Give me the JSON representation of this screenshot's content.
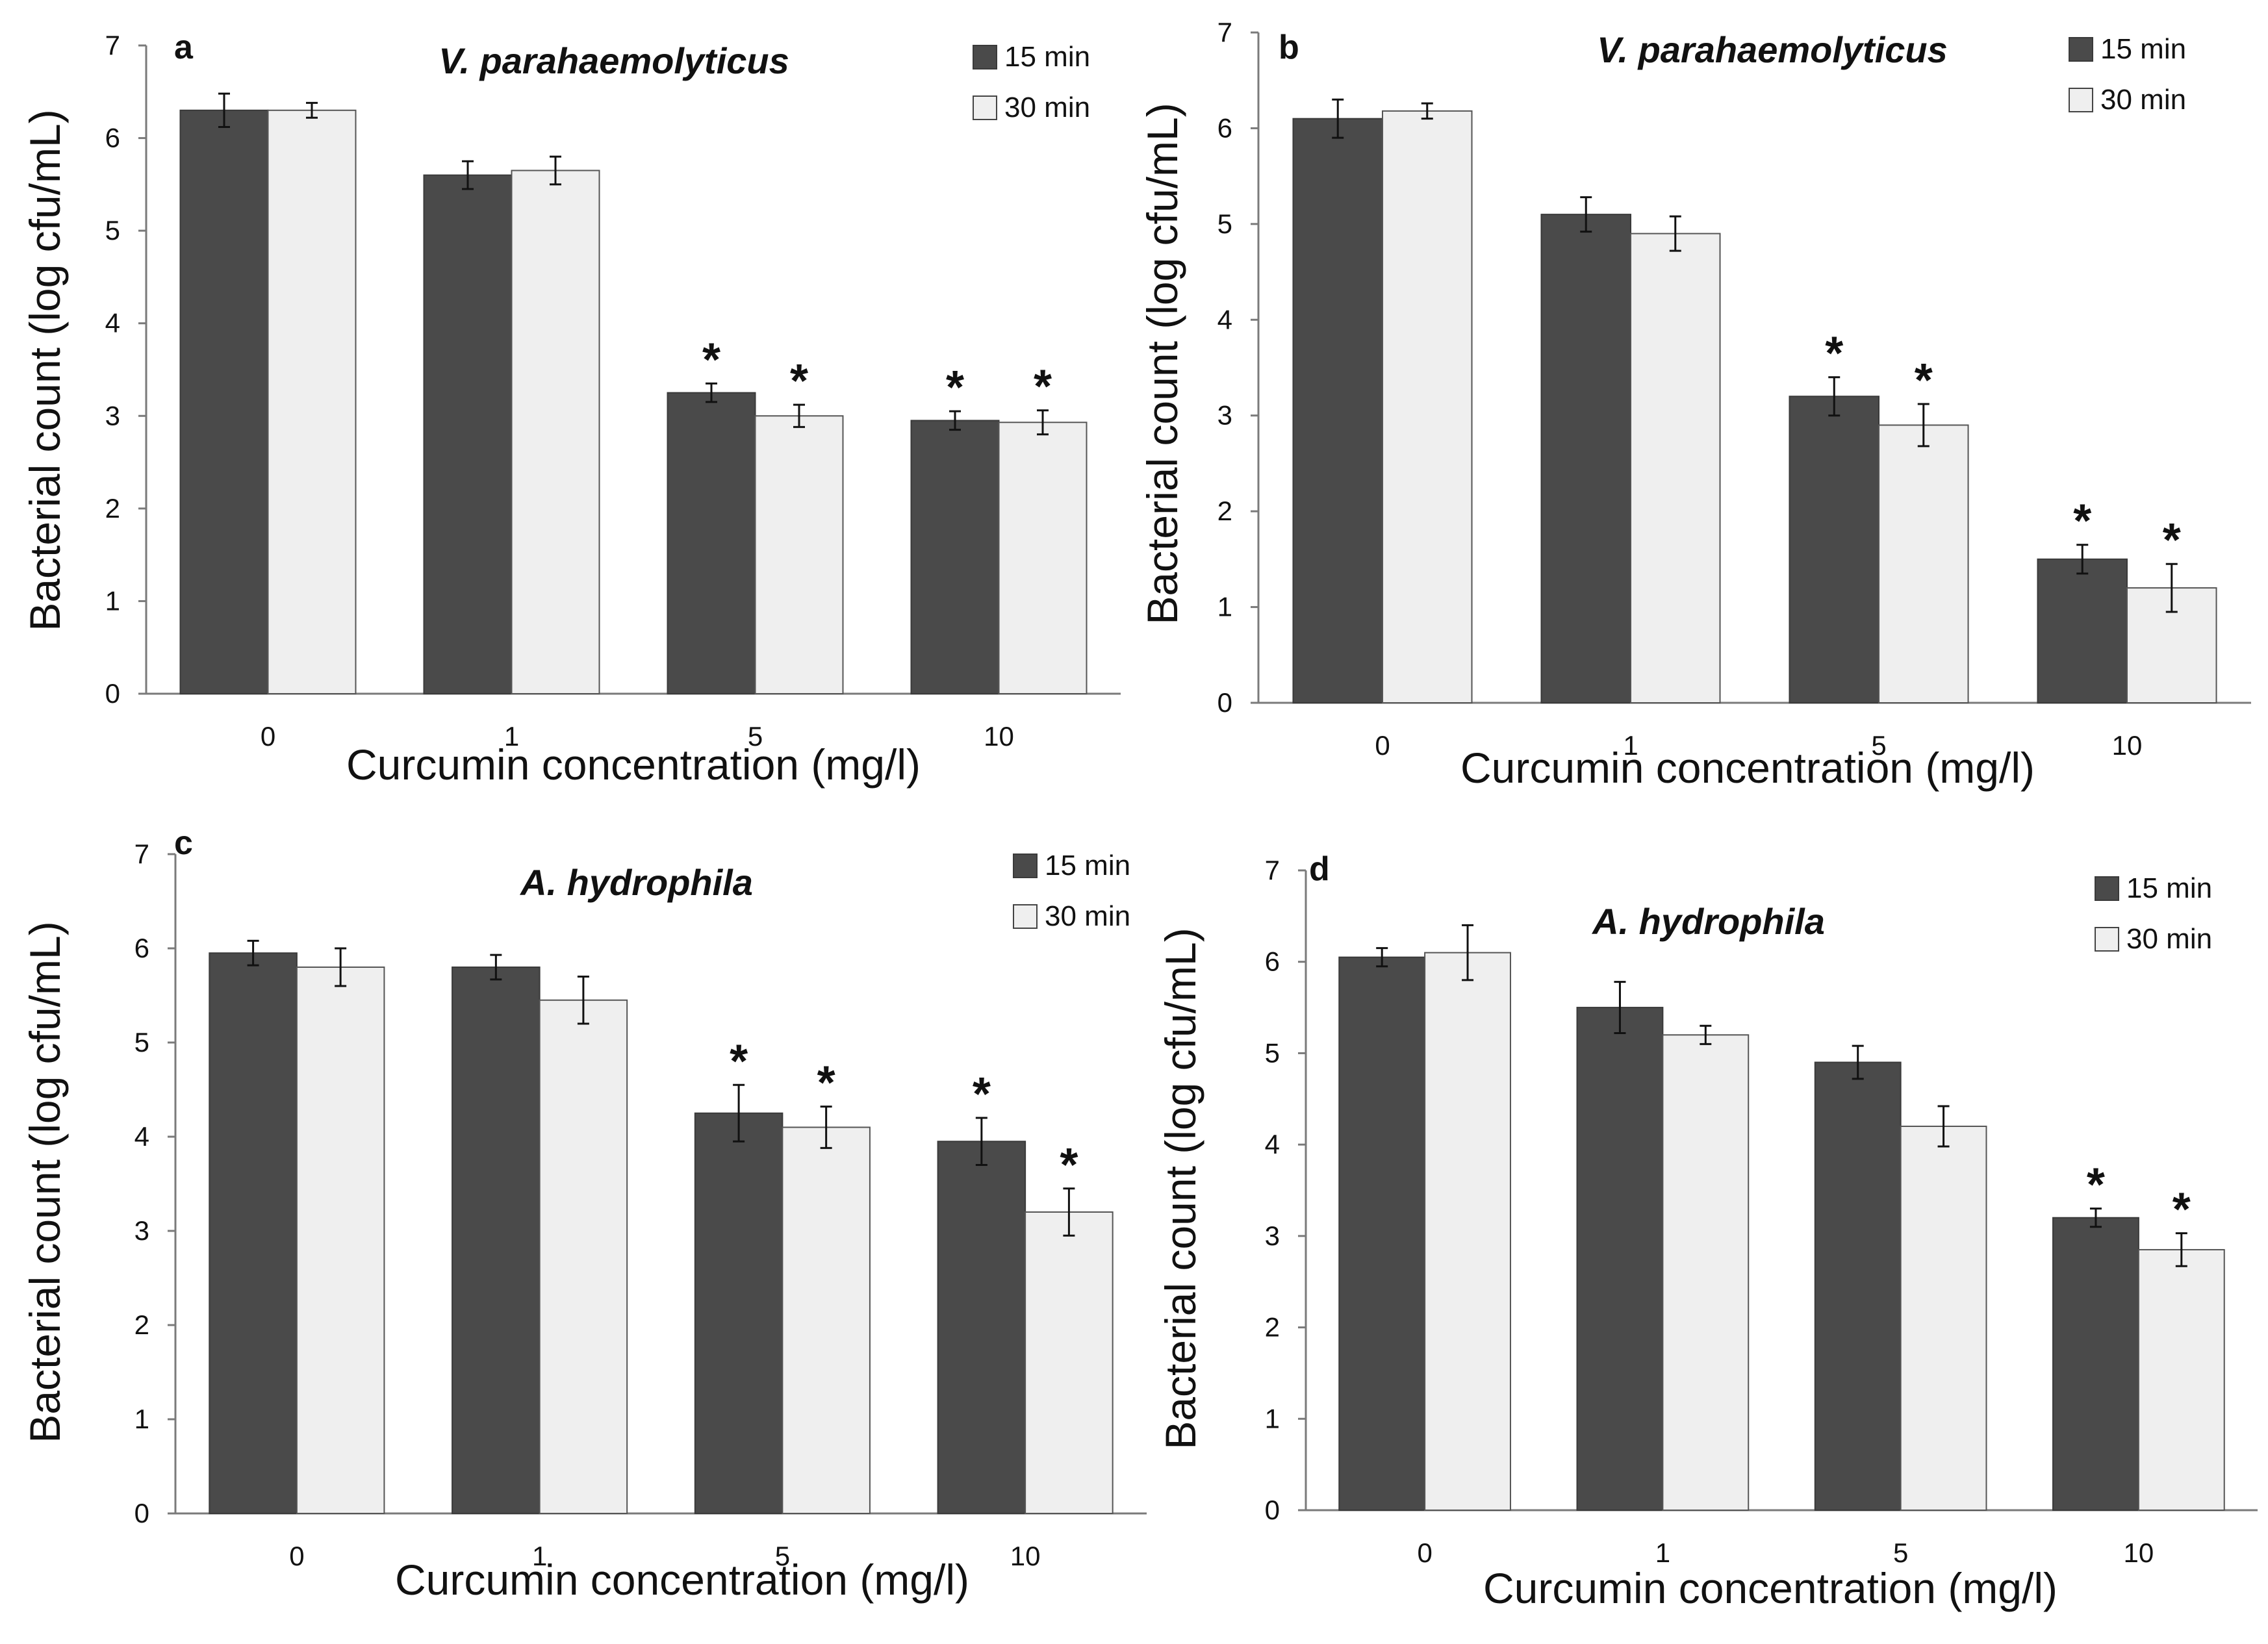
{
  "colors": {
    "bar_15": "#4a4a4a",
    "bar_30": "#efefef",
    "axis": "#7a7a7a",
    "text": "#111111"
  },
  "chart_data": [
    {
      "panel": "a",
      "type": "bar",
      "title": "V. parahaemolyticus",
      "xlabel": "Curcumin concentration (mg/l)",
      "ylabel": "Bacterial count (log cfu/mL)",
      "ylim": [
        0,
        7
      ],
      "yticks": [
        "0",
        "1",
        "2",
        "3",
        "4",
        "5",
        "6",
        "7"
      ],
      "categories": [
        "0",
        "1",
        "5",
        "10"
      ],
      "legend_position": "top-right",
      "grid": false,
      "series": [
        {
          "name": "15  min",
          "values": [
            6.3,
            5.6,
            3.25,
            2.95
          ],
          "errors": [
            0.18,
            0.15,
            0.1,
            0.1
          ],
          "significant": [
            false,
            false,
            true,
            true
          ]
        },
        {
          "name": "30 min",
          "values": [
            6.3,
            5.65,
            3.0,
            2.93
          ],
          "errors": [
            0.08,
            0.15,
            0.12,
            0.13
          ],
          "significant": [
            false,
            false,
            true,
            true
          ]
        }
      ]
    },
    {
      "panel": "b",
      "type": "bar",
      "title": "V. parahaemolyticus",
      "xlabel": "Curcumin concentration (mg/l)",
      "ylabel": "Bacterial count (log cfu/mL)",
      "ylim": [
        0,
        7
      ],
      "yticks": [
        "0",
        "1",
        "2",
        "3",
        "4",
        "5",
        "6",
        "7"
      ],
      "categories": [
        "0",
        "1",
        "5",
        "10"
      ],
      "legend_position": "top-right",
      "grid": false,
      "series": [
        {
          "name": "15 min",
          "values": [
            6.1,
            5.1,
            3.2,
            1.5
          ],
          "errors": [
            0.2,
            0.18,
            0.2,
            0.15
          ],
          "significant": [
            false,
            false,
            true,
            true
          ]
        },
        {
          "name": "30  min",
          "values": [
            6.18,
            4.9,
            2.9,
            1.2
          ],
          "errors": [
            0.08,
            0.18,
            0.22,
            0.25
          ],
          "significant": [
            false,
            false,
            true,
            true
          ]
        }
      ]
    },
    {
      "panel": "c",
      "type": "bar",
      "title": "A. hydrophila",
      "xlabel": "Curcumin concentration (mg/l)",
      "ylabel": "Bacterial count (log cfu/mL)",
      "ylim": [
        0,
        7
      ],
      "yticks": [
        "0",
        "1",
        "2",
        "3",
        "4",
        "5",
        "6",
        "7"
      ],
      "categories": [
        "0",
        "1",
        "5",
        "10"
      ],
      "legend_position": "top-right",
      "grid": false,
      "series": [
        {
          "name": "15  min",
          "values": [
            5.95,
            5.8,
            4.25,
            3.95
          ],
          "errors": [
            0.13,
            0.13,
            0.3,
            0.25
          ],
          "significant": [
            false,
            false,
            true,
            true
          ]
        },
        {
          "name": "30 min",
          "values": [
            5.8,
            5.45,
            4.1,
            3.2
          ],
          "errors": [
            0.2,
            0.25,
            0.22,
            0.25
          ],
          "significant": [
            false,
            false,
            true,
            true
          ]
        }
      ]
    },
    {
      "panel": "d",
      "type": "bar",
      "title": "A. hydrophila",
      "xlabel": "Curcumin concentration (mg/l)",
      "ylabel": "Bacterial count (log cfu/mL)",
      "ylim": [
        0,
        7
      ],
      "yticks": [
        "0",
        "1",
        "2",
        "3",
        "4",
        "5",
        "6",
        "7"
      ],
      "categories": [
        "0",
        "1",
        "5",
        "10"
      ],
      "legend_position": "top-right",
      "grid": false,
      "series": [
        {
          "name": "15 min",
          "values": [
            6.05,
            5.5,
            4.9,
            3.2
          ],
          "errors": [
            0.1,
            0.28,
            0.18,
            0.1
          ],
          "significant": [
            false,
            false,
            false,
            true
          ]
        },
        {
          "name": "30  min",
          "values": [
            6.1,
            5.2,
            4.2,
            2.85
          ],
          "errors": [
            0.3,
            0.1,
            0.22,
            0.18
          ],
          "significant": [
            false,
            false,
            false,
            true
          ]
        }
      ]
    }
  ]
}
